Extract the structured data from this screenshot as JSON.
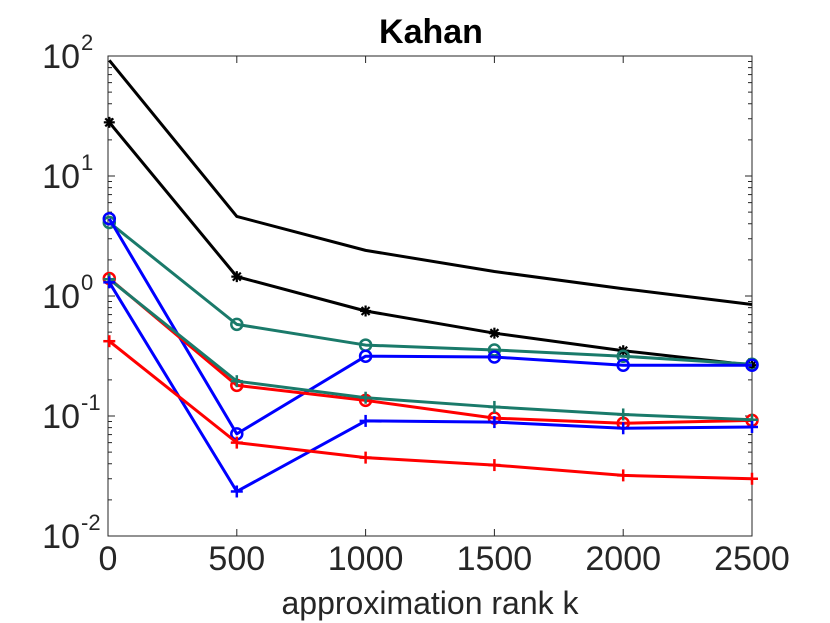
{
  "chart_data": {
    "type": "line",
    "title": "Kahan",
    "xlabel": "approximation rank k",
    "ylabel": "",
    "yscale": "log",
    "xlim": [
      0,
      2500
    ],
    "ylim": [
      0.01,
      100
    ],
    "xticks": [
      0,
      500,
      1000,
      1500,
      2000,
      2500
    ],
    "xtick_labels": [
      "0",
      "500",
      "1000",
      "1500",
      "2000",
      "2500"
    ],
    "yticks": [
      {
        "value": 0.01,
        "base": "10",
        "exp": "-2"
      },
      {
        "value": 0.1,
        "base": "10",
        "exp": "-1"
      },
      {
        "value": 1,
        "base": "10",
        "exp": "0"
      },
      {
        "value": 10,
        "base": "10",
        "exp": "1"
      },
      {
        "value": 100,
        "base": "10",
        "exp": "2"
      }
    ],
    "grid": false,
    "legend": null,
    "series": [
      {
        "name": "black-solid",
        "color": "#000000",
        "marker": "none",
        "x": [
          5,
          500,
          1000,
          1500,
          2000,
          2500
        ],
        "y": [
          92,
          4.6,
          2.4,
          1.6,
          1.15,
          0.85
        ]
      },
      {
        "name": "black-star",
        "color": "#000000",
        "marker": "star",
        "x": [
          5,
          500,
          1000,
          1500,
          2000,
          2500
        ],
        "y": [
          28,
          1.45,
          0.75,
          0.49,
          0.35,
          0.265
        ]
      },
      {
        "name": "green-circle",
        "color": "#1a7a6a",
        "marker": "circle",
        "x": [
          5,
          500,
          1000,
          1500,
          2000,
          2500
        ],
        "y": [
          4.1,
          0.58,
          0.39,
          0.355,
          0.315,
          0.27
        ]
      },
      {
        "name": "blue-circle",
        "color": "#0000ff",
        "marker": "circle",
        "x": [
          5,
          500,
          1000,
          1500,
          2000,
          2500
        ],
        "y": [
          4.4,
          0.071,
          0.315,
          0.31,
          0.265,
          0.265
        ]
      },
      {
        "name": "red-circle",
        "color": "#ff0000",
        "marker": "circle",
        "x": [
          5,
          500,
          1000,
          1500,
          2000,
          2500
        ],
        "y": [
          1.4,
          0.18,
          0.135,
          0.096,
          0.087,
          0.092
        ]
      },
      {
        "name": "green-plus",
        "color": "#1a7a6a",
        "marker": "plus",
        "x": [
          5,
          500,
          1000,
          1500,
          2000,
          2500
        ],
        "y": [
          1.38,
          0.195,
          0.142,
          0.119,
          0.103,
          0.093
        ]
      },
      {
        "name": "blue-plus",
        "color": "#0000ff",
        "marker": "plus",
        "x": [
          5,
          500,
          1000,
          1500,
          2000,
          2500
        ],
        "y": [
          1.3,
          0.0235,
          0.091,
          0.089,
          0.079,
          0.081
        ]
      },
      {
        "name": "red-plus",
        "color": "#ff0000",
        "marker": "plus",
        "x": [
          5,
          500,
          1000,
          1500,
          2000,
          2500
        ],
        "y": [
          0.42,
          0.06,
          0.045,
          0.039,
          0.032,
          0.03
        ]
      }
    ]
  }
}
